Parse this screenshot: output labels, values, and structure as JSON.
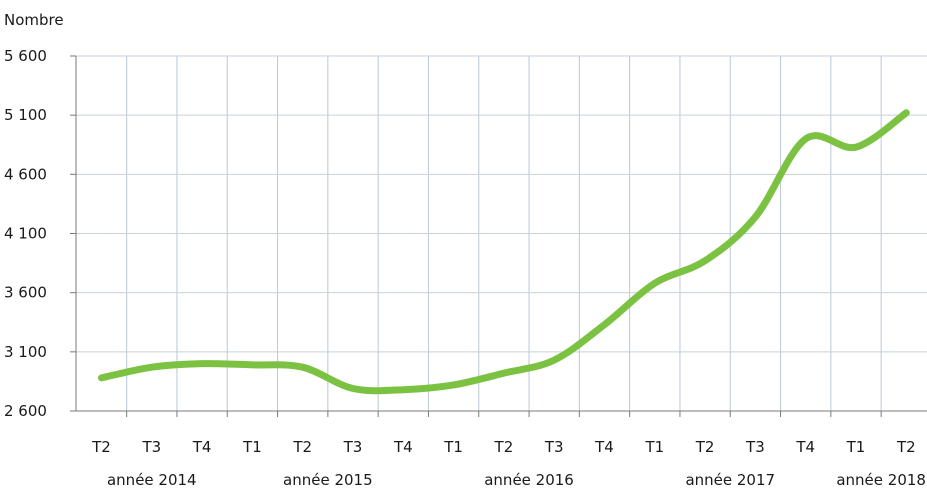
{
  "chart_data": {
    "type": "line",
    "ylabel": "Nombre",
    "ylim": [
      2600,
      5600
    ],
    "yticks": [
      2600,
      3100,
      3600,
      4100,
      4600,
      5100,
      5600
    ],
    "ytick_labels": [
      "2 600",
      "3 100",
      "3 600",
      "4 100",
      "4 600",
      "5 100",
      "5 600"
    ],
    "grid": true,
    "categories": [
      "T2",
      "T3",
      "T4",
      "T1",
      "T2",
      "T3",
      "T4",
      "T1",
      "T2",
      "T3",
      "T4",
      "T1",
      "T2",
      "T3",
      "T4",
      "T1",
      "T2"
    ],
    "year_groups": [
      {
        "label": "année 2014",
        "start": 0,
        "end": 2
      },
      {
        "label": "année 2015",
        "start": 3,
        "end": 6
      },
      {
        "label": "année 2016",
        "start": 7,
        "end": 10
      },
      {
        "label": "année 2017",
        "start": 11,
        "end": 14
      },
      {
        "label": "année 2018",
        "start": 15,
        "end": 16
      }
    ],
    "series": [
      {
        "values": [
          2880,
          2970,
          3000,
          2990,
          2970,
          2790,
          2780,
          2820,
          2920,
          3030,
          3330,
          3680,
          3870,
          4240,
          4900,
          4830,
          5120
        ],
        "color": "#7cc242"
      }
    ]
  }
}
